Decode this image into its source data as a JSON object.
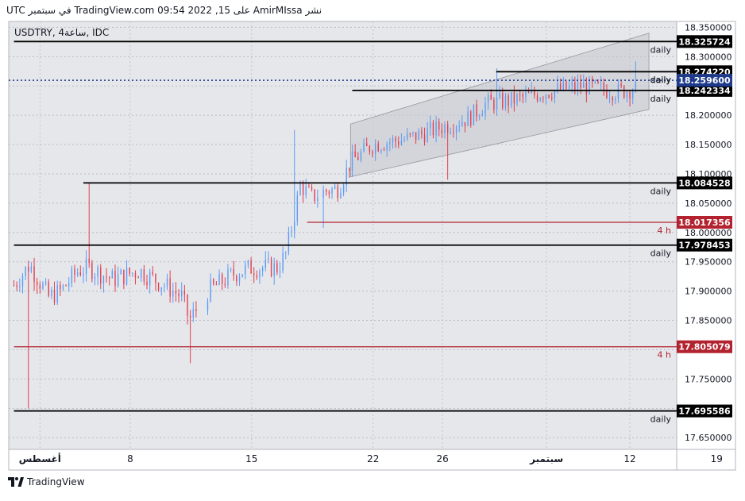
{
  "header_text": "نشر AmirMIssa على TradingView.com 09:54 2022 ,15 في سبتمبر UTC",
  "footer": {
    "brand": "TradingView"
  },
  "colors": {
    "up": "#5b9cf6",
    "down": "#e0404f",
    "black_level": "#000000",
    "red_level": "#b2222f",
    "current_price": "#1e3a8a",
    "channel_fill": "#c4c6cc",
    "plot_bg": "#e6e7eb"
  },
  "chart_data": {
    "type": "candlestick",
    "title": "USDTRY, 4ساعة, IDC",
    "ylim": [
      17.63,
      18.36
    ],
    "xlim_days": [
      0,
      38.5
    ],
    "y_ticks": [
      "18.350000",
      "18.300000",
      "18.250000",
      "18.200000",
      "18.150000",
      "18.100000",
      "18.050000",
      "18.000000",
      "17.950000",
      "17.900000",
      "17.850000",
      "17.800000",
      "17.750000",
      "17.700000",
      "17.650000"
    ],
    "x_ticks": [
      {
        "label": "أغسطس",
        "day": 1.8
      },
      {
        "label": "8",
        "day": 7
      },
      {
        "label": "15",
        "day": 14
      },
      {
        "label": "22",
        "day": 21
      },
      {
        "label": "26",
        "day": 25
      },
      {
        "label": "سبتمبر",
        "day": 31
      },
      {
        "label": "12",
        "day": 35.8
      },
      {
        "label": "19",
        "day": 40.8
      }
    ],
    "levels": [
      {
        "value": 18.325724,
        "label": "18.325724",
        "tag": "daily",
        "color": "black",
        "from_day": 0.3
      },
      {
        "value": 18.27422,
        "label": "18.274220",
        "tag": "daily",
        "color": "black",
        "from_day": 28.1
      },
      {
        "value": 18.242334,
        "label": "18.242334",
        "tag": "daily",
        "color": "black",
        "from_day": 19.8
      },
      {
        "value": 18.084528,
        "label": "18.084528",
        "tag": "daily",
        "color": "black",
        "from_day": 4.3
      },
      {
        "value": 18.017356,
        "label": "18.017356",
        "tag": "4 h",
        "color": "red",
        "from_day": 17.2
      },
      {
        "value": 17.978453,
        "label": "17.978453",
        "tag": "daily",
        "color": "black",
        "from_day": 0.3
      },
      {
        "value": 17.805079,
        "label": "17.805079",
        "tag": "4 h",
        "color": "red",
        "from_day": 0.3
      },
      {
        "value": 17.695586,
        "label": "17.695586",
        "tag": "daily",
        "color": "black",
        "from_day": 0.3
      }
    ],
    "current_price": {
      "value": 18.2596,
      "label": "18.259600",
      "tag": "daily"
    },
    "channel": {
      "upper": [
        [
          19.7,
          18.185
        ],
        [
          36.9,
          18.34
        ]
      ],
      "lower": [
        [
          19.7,
          18.095
        ],
        [
          36.9,
          18.21
        ]
      ]
    },
    "candle_anchors": [
      [
        0.3,
        17.91
      ],
      [
        1.2,
        17.945
      ],
      [
        2.3,
        17.89
      ],
      [
        3.0,
        17.9
      ],
      [
        4.0,
        17.935
      ],
      [
        4.6,
        17.94
      ],
      [
        6.0,
        17.92
      ],
      [
        7.5,
        17.935
      ],
      [
        9.0,
        17.91
      ],
      [
        10.0,
        17.89
      ],
      [
        10.4,
        17.85
      ],
      [
        11.5,
        17.9
      ],
      [
        13.0,
        17.93
      ],
      [
        14.0,
        17.94
      ],
      [
        15.5,
        17.94
      ],
      [
        16.0,
        17.965
      ],
      [
        16.8,
        18.08
      ],
      [
        17.5,
        18.06
      ],
      [
        18.2,
        18.07
      ],
      [
        19.0,
        18.075
      ],
      [
        19.7,
        18.12
      ],
      [
        21.0,
        18.15
      ],
      [
        23.0,
        18.16
      ],
      [
        25.0,
        18.18
      ],
      [
        26.5,
        18.195
      ],
      [
        27.5,
        18.22
      ],
      [
        29.0,
        18.225
      ],
      [
        31.0,
        18.24
      ],
      [
        33.0,
        18.25
      ],
      [
        35.0,
        18.24
      ],
      [
        36.0,
        18.245
      ]
    ],
    "candle_spikes": [
      {
        "day": 1.2,
        "low": 17.7
      },
      {
        "day": 4.6,
        "high": 18.084
      },
      {
        "day": 10.4,
        "low": 17.777
      },
      {
        "day": 16.4,
        "high": 18.175
      },
      {
        "day": 18.1,
        "low": 18.008
      },
      {
        "day": 25.3,
        "low": 18.09
      },
      {
        "day": 28.1,
        "high": 18.28
      },
      {
        "day": 36.2,
        "high": 18.292
      }
    ]
  }
}
